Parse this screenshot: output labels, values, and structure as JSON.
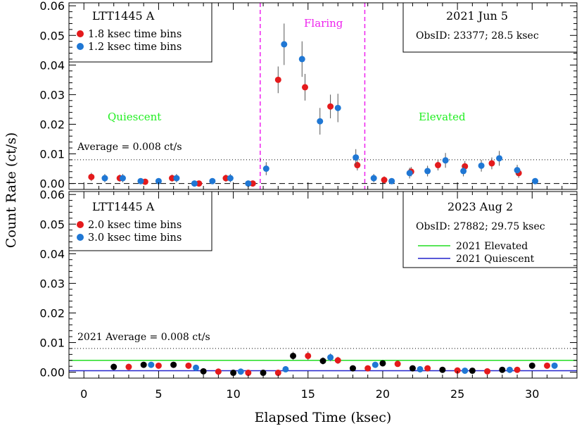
{
  "chart_data": [
    {
      "type": "scatter",
      "panel": "top",
      "title": "",
      "xlabel": "",
      "ylabel": "",
      "xlim": [
        -1,
        33
      ],
      "ylim": [
        -0.002,
        0.061
      ],
      "yticks": [
        0.0,
        0.01,
        0.02,
        0.03,
        0.04,
        0.05,
        0.06
      ],
      "ytick_labels": [
        "0.00",
        "0.01",
        "0.02",
        "0.03",
        "0.04",
        "0.05",
        "0.06"
      ],
      "legend": {
        "title": "LTT1445 A",
        "entries": [
          {
            "label": "1.8 ksec time bins",
            "color": "#e41a1c"
          },
          {
            "label": "1.2 ksec time bins",
            "color": "#1f77d4"
          }
        ]
      },
      "info_box": {
        "date": "2021 Jun 5",
        "obsid": "ObsID: 23377; 28.5 ksec"
      },
      "regions": [
        {
          "label": "Quiescent",
          "color": "#22ee22"
        },
        {
          "label": "Flaring",
          "color": "#ee22ee",
          "x_start": 11.8,
          "x_end": 18.8
        },
        {
          "label": "Elevated",
          "color": "#22ee22"
        }
      ],
      "average_label": "Average = 0.008 ct/s",
      "average_value": 0.008,
      "baseline_value": 0.0,
      "series": [
        {
          "name": "1.8 ksec time bins",
          "color": "#e41a1c",
          "x": [
            0.5,
            2.4,
            4.1,
            5.9,
            7.7,
            9.5,
            11.3,
            13.0,
            14.8,
            16.5,
            18.3,
            20.1,
            21.9,
            23.7,
            25.5,
            27.3,
            29.1
          ],
          "y": [
            0.0022,
            0.0018,
            0.0006,
            0.0018,
            0.0,
            0.0018,
            0.0,
            0.035,
            0.0325,
            0.026,
            0.0062,
            0.0012,
            0.004,
            0.0062,
            0.0058,
            0.0068,
            0.0035
          ],
          "err": [
            0.0014,
            0.0012,
            0.0008,
            0.0012,
            0.0006,
            0.0012,
            0.0006,
            0.0045,
            0.0045,
            0.004,
            0.0018,
            0.0012,
            0.0016,
            0.0018,
            0.0018,
            0.002,
            0.0016
          ]
        },
        {
          "name": "1.2 ksec time bins",
          "color": "#1f77d4",
          "x": [
            1.4,
            2.6,
            3.8,
            5.0,
            6.2,
            7.4,
            8.6,
            9.8,
            11.0,
            12.2,
            13.4,
            14.6,
            15.8,
            17.0,
            18.2,
            19.4,
            20.6,
            21.8,
            23.0,
            24.2,
            25.4,
            26.6,
            27.8,
            29.0,
            30.2
          ],
          "y": [
            0.0018,
            0.0018,
            0.0008,
            0.0008,
            0.0018,
            0.0,
            0.0008,
            0.0018,
            0.0,
            0.005,
            0.047,
            0.042,
            0.021,
            0.0255,
            0.0088,
            0.0018,
            0.0008,
            0.0035,
            0.0042,
            0.0078,
            0.0042,
            0.006,
            0.0085,
            0.0045,
            0.0008
          ],
          "err": [
            0.0014,
            0.0014,
            0.0008,
            0.0008,
            0.0014,
            0.0006,
            0.0008,
            0.0014,
            0.0006,
            0.0022,
            0.007,
            0.006,
            0.0045,
            0.0048,
            0.0028,
            0.0014,
            0.0008,
            0.0018,
            0.0018,
            0.0025,
            0.0018,
            0.002,
            0.0025,
            0.0018,
            0.0008
          ]
        }
      ]
    },
    {
      "type": "scatter",
      "panel": "bottom",
      "title": "",
      "xlabel": "Elapsed Time (ksec)",
      "ylabel": "Count Rate (ct/s)",
      "xlim": [
        -1,
        33
      ],
      "ylim": [
        -0.002,
        0.061
      ],
      "xticks": [
        0,
        5,
        10,
        15,
        20,
        25,
        30
      ],
      "xtick_labels": [
        "0",
        "5",
        "10",
        "15",
        "20",
        "25",
        "30"
      ],
      "yticks": [
        0.0,
        0.01,
        0.02,
        0.03,
        0.04,
        0.05,
        0.06
      ],
      "ytick_labels": [
        "0.00",
        "0.01",
        "0.02",
        "0.03",
        "0.04",
        "0.05",
        "0.06"
      ],
      "legend": {
        "title": "LTT1445 A",
        "entries": [
          {
            "label": "2.0 ksec time bins",
            "color": "#e41a1c"
          },
          {
            "label": "3.0 ksec time bins",
            "color": "#1f77d4"
          }
        ]
      },
      "info_box": {
        "date": "2023 Aug 2",
        "obsid": "ObsID: 27882; 29.75 ksec"
      },
      "line_legend": [
        {
          "label": "2021 Elevated",
          "color": "#22dd22",
          "value": 0.004
        },
        {
          "label": "2021 Quiescent",
          "color": "#2222cc",
          "value": 0.0005
        }
      ],
      "average_label": "2021 Average = 0.008 ct/s",
      "average_value": 0.008,
      "series": [
        {
          "name": "2.0 ksec time bins",
          "color": "#e41a1c",
          "x": [
            3.0,
            5.0,
            7.0,
            9.0,
            11.0,
            13.0,
            15.0,
            17.0,
            19.0,
            21.0,
            23.0,
            25.0,
            27.0,
            29.0,
            31.0
          ],
          "y": [
            0.0018,
            0.0022,
            0.0022,
            0.0002,
            -0.0002,
            -0.0002,
            0.0055,
            0.004,
            0.0013,
            0.0028,
            0.0013,
            0.0006,
            0.0003,
            0.0008,
            0.0022
          ],
          "err": [
            0.0008,
            0.001,
            0.001,
            0.0006,
            0.0004,
            0.0004,
            0.0015,
            0.0012,
            0.0008,
            0.001,
            0.0008,
            0.0006,
            0.0004,
            0.0006,
            0.001
          ]
        },
        {
          "name": "3.0 ksec time bins",
          "color": "#1f77d4",
          "x": [
            4.5,
            7.5,
            10.5,
            13.5,
            16.5,
            19.5,
            22.5,
            25.5,
            28.5,
            31.5
          ],
          "y": [
            0.0025,
            0.0015,
            0.0002,
            0.001,
            0.005,
            0.0025,
            0.001,
            0.0005,
            0.0008,
            0.0022
          ],
          "err": [
            0.0009,
            0.0008,
            0.0005,
            0.0007,
            0.0013,
            0.0009,
            0.0007,
            0.0005,
            0.0006,
            0.0009
          ]
        },
        {
          "name": "black points",
          "color": "#000000",
          "x": [
            2.0,
            4.0,
            6.0,
            8.0,
            10.0,
            12.0,
            14.0,
            16.0,
            18.0,
            20.0,
            22.0,
            24.0,
            26.0,
            28.0,
            30.0
          ],
          "y": [
            0.0018,
            0.0025,
            0.0025,
            0.0003,
            -0.0002,
            -0.0002,
            0.0055,
            0.0038,
            0.0013,
            0.003,
            0.0013,
            0.0008,
            0.0005,
            0.0008,
            0.0022
          ],
          "err": [
            0.0008,
            0.0009,
            0.0009,
            0.0005,
            0.0004,
            0.0004,
            0.0014,
            0.0012,
            0.0008,
            0.001,
            0.0008,
            0.0006,
            0.0005,
            0.0006,
            0.0009
          ]
        }
      ]
    }
  ]
}
